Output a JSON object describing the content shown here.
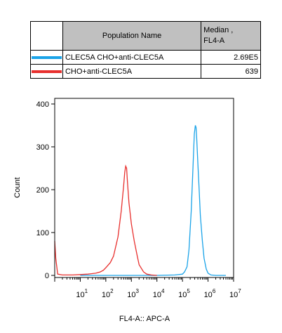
{
  "legend": {
    "header_name": "Population Name",
    "header_median_line1": "Median ,",
    "header_median_line2": "FL4-A",
    "rows": [
      {
        "name": "CLEC5A CHO+anti-CLEC5A",
        "median": "2.69E5",
        "color": "#1aa3e8"
      },
      {
        "name": "CHO+anti-CLEC5A",
        "median": "639",
        "color": "#e8302e"
      }
    ]
  },
  "chart_data": {
    "type": "line",
    "xlabel": "FL4-A:: APC-A",
    "ylabel": "Count",
    "x_scale": "log",
    "xlim": [
      1,
      10000000
    ],
    "ylim": [
      0,
      400
    ],
    "yticks": [
      "0",
      "100",
      "200",
      "300",
      "400"
    ],
    "xticks": [
      {
        "base": "10",
        "exp": "1"
      },
      {
        "base": "10",
        "exp": "2"
      },
      {
        "base": "10",
        "exp": "3"
      },
      {
        "base": "10",
        "exp": "4"
      },
      {
        "base": "10",
        "exp": "5"
      },
      {
        "base": "10",
        "exp": "6"
      },
      {
        "base": "10",
        "exp": "7"
      }
    ],
    "series": [
      {
        "name": "CLEC5A CHO+anti-CLEC5A",
        "color": "#1aa3e8",
        "x": [
          10,
          10000,
          50000,
          100000,
          120000,
          150000,
          180000,
          220000,
          260000,
          290000,
          320000,
          340000,
          360000,
          400000,
          450000,
          500000,
          600000,
          700000,
          850000,
          1000000,
          1300000,
          2000000,
          5000000
        ],
        "y": [
          0,
          0,
          1,
          3,
          8,
          20,
          60,
          150,
          260,
          330,
          350,
          345,
          320,
          260,
          200,
          140,
          80,
          40,
          15,
          5,
          1,
          0,
          0
        ]
      },
      {
        "name": "CHO+anti-CLEC5A",
        "color": "#e8302e",
        "x": [
          1,
          1.1,
          1.3,
          2,
          5,
          10,
          20,
          40,
          60,
          80,
          100,
          150,
          200,
          300,
          400,
          500,
          550,
          600,
          650,
          700,
          800,
          1000,
          1300,
          1700,
          2000,
          3000,
          4000,
          6000,
          10000
        ],
        "y": [
          80,
          40,
          3,
          1,
          1,
          2,
          3,
          5,
          8,
          12,
          18,
          30,
          45,
          90,
          150,
          210,
          240,
          255,
          250,
          220,
          170,
          120,
          80,
          45,
          25,
          8,
          3,
          1,
          0
        ]
      }
    ]
  }
}
